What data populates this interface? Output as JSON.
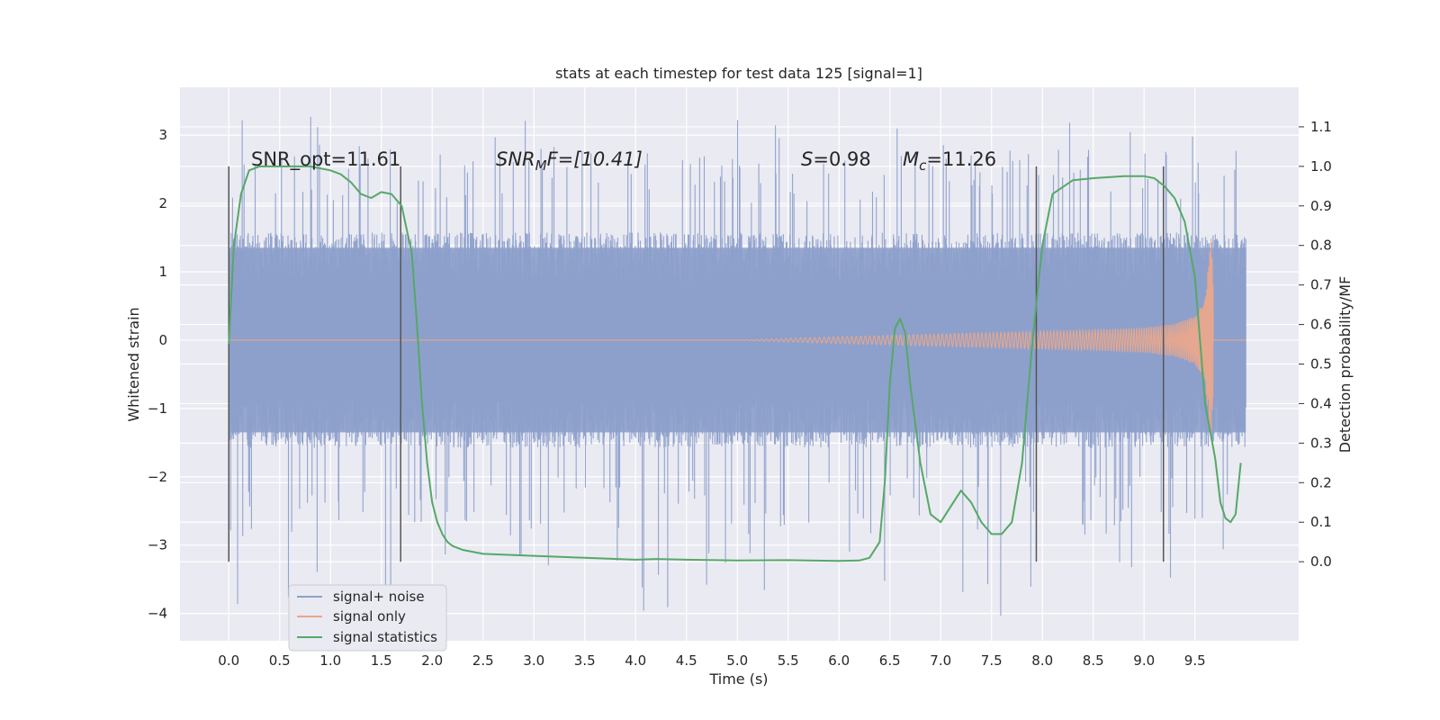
{
  "chart_data": {
    "type": "line",
    "title": "stats at each timestep for test data 125 [signal=1]",
    "xlabel": "Time (s)",
    "ylabel": "Whitened strain",
    "y2label": "Detection probability/MF",
    "xlim": [
      -0.48,
      10.52
    ],
    "ylim": [
      -4.4,
      3.7
    ],
    "y2lim": [
      -0.2,
      1.2
    ],
    "xticks": [
      "0.0",
      "0.5",
      "1.0",
      "1.5",
      "2.0",
      "2.5",
      "3.0",
      "3.5",
      "4.0",
      "4.5",
      "5.0",
      "5.5",
      "6.0",
      "6.5",
      "7.0",
      "7.5",
      "8.0",
      "8.5",
      "9.0",
      "9.5"
    ],
    "yticks": [
      "3",
      "2",
      "1",
      "0",
      "−1",
      "−2",
      "−3",
      "−4"
    ],
    "y2ticks": [
      "1.1",
      "1.0",
      "0.9",
      "0.8",
      "0.7",
      "0.6",
      "0.5",
      "0.4",
      "0.3",
      "0.2",
      "0.1",
      "0.0"
    ],
    "grid": true,
    "legend_position": "lower-left",
    "colors": {
      "noise": "#8da0cb",
      "signal": "#e5a78f",
      "stats": "#55a868",
      "vline": "#555555",
      "plot_bg": "#eaeaf2",
      "grid": "#ffffff"
    },
    "annotations": {
      "snr_opt": "SNR_opt=11.61",
      "snr_mf_main": "SNR",
      "snr_mf_sub": "M",
      "snr_mf_rest": "F=[10.41]",
      "s_main": "S",
      "s_rest": "=0.98",
      "mc_main": "M",
      "mc_sub": "c",
      "mc_rest": "=11.26"
    },
    "vertical_lines_x": [
      0.0,
      1.69,
      7.94,
      9.19
    ],
    "series": [
      {
        "name": "signal+ noise",
        "kind": "noise",
        "x_range": [
          0.0,
          10.0
        ],
        "envelope_abs": 1.5,
        "peak_max": 3.3,
        "peak_min": -4.05
      },
      {
        "name": "signal only",
        "kind": "chirp",
        "x": [
          0.0,
          5.0,
          6.0,
          6.5,
          7.0,
          7.5,
          8.0,
          8.5,
          9.0,
          9.3,
          9.5,
          9.6,
          9.66,
          9.7,
          10.0
        ],
        "amplitude": [
          0.0,
          0.0,
          0.05,
          0.07,
          0.09,
          0.11,
          0.13,
          0.15,
          0.18,
          0.24,
          0.35,
          0.6,
          1.6,
          0.0,
          0.0
        ]
      },
      {
        "name": "signal statistics",
        "kind": "stats",
        "axis": "right",
        "x": [
          0.0,
          0.05,
          0.12,
          0.2,
          0.3,
          0.5,
          0.8,
          1.0,
          1.1,
          1.2,
          1.3,
          1.4,
          1.5,
          1.6,
          1.7,
          1.8,
          1.85,
          1.9,
          1.95,
          2.0,
          2.05,
          2.1,
          2.15,
          2.2,
          2.3,
          2.5,
          3.0,
          3.5,
          4.0,
          4.2,
          4.5,
          5.0,
          5.5,
          6.0,
          6.2,
          6.3,
          6.4,
          6.45,
          6.5,
          6.55,
          6.6,
          6.65,
          6.7,
          6.8,
          6.9,
          7.0,
          7.1,
          7.2,
          7.3,
          7.4,
          7.5,
          7.6,
          7.7,
          7.8,
          7.9,
          8.0,
          8.1,
          8.3,
          8.5,
          8.8,
          9.0,
          9.1,
          9.2,
          9.3,
          9.4,
          9.5,
          9.6,
          9.7,
          9.75,
          9.8,
          9.85,
          9.9,
          9.95
        ],
        "values": [
          0.55,
          0.8,
          0.93,
          0.99,
          1.0,
          1.0,
          1.0,
          0.99,
          0.98,
          0.96,
          0.93,
          0.92,
          0.935,
          0.93,
          0.9,
          0.78,
          0.6,
          0.4,
          0.25,
          0.15,
          0.1,
          0.07,
          0.05,
          0.04,
          0.03,
          0.02,
          0.015,
          0.01,
          0.005,
          0.007,
          0.005,
          0.003,
          0.004,
          0.002,
          0.003,
          0.01,
          0.05,
          0.2,
          0.45,
          0.59,
          0.615,
          0.58,
          0.45,
          0.25,
          0.12,
          0.1,
          0.14,
          0.18,
          0.15,
          0.1,
          0.07,
          0.07,
          0.1,
          0.25,
          0.55,
          0.8,
          0.93,
          0.965,
          0.97,
          0.975,
          0.975,
          0.97,
          0.95,
          0.92,
          0.86,
          0.72,
          0.4,
          0.26,
          0.15,
          0.11,
          0.1,
          0.12,
          0.25
        ]
      }
    ]
  }
}
